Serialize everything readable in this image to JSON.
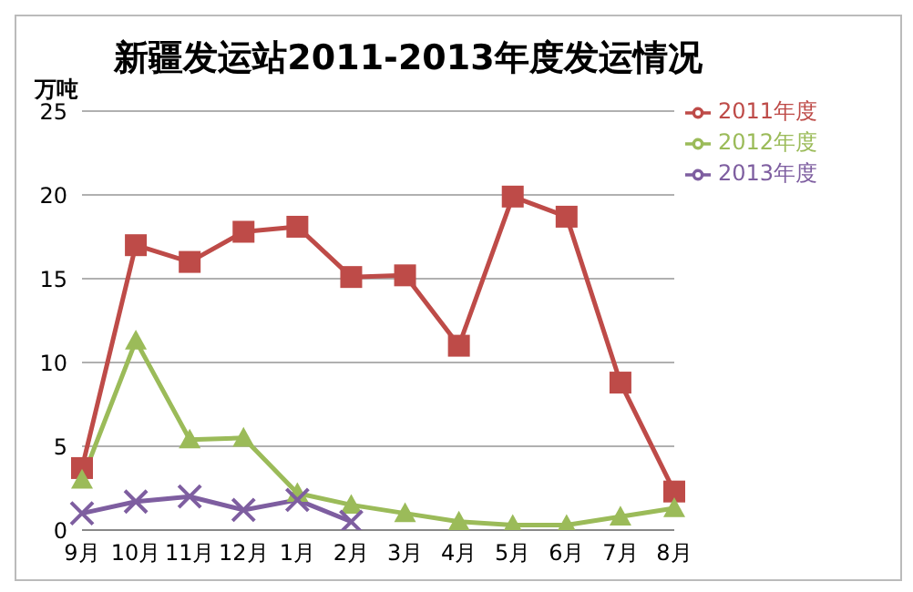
{
  "chart_data": {
    "type": "line",
    "title": "新疆发运站2011-2013年度发运情况",
    "ylabel": "万吨",
    "categories": [
      "9月",
      "10月",
      "11月",
      "12月",
      "1月",
      "2月",
      "3月",
      "4月",
      "5月",
      "6月",
      "7月",
      "8月"
    ],
    "series": [
      {
        "name": "2011年度",
        "color": "#be4b48",
        "marker": "square",
        "values": [
          3.7,
          17,
          16,
          17.8,
          18.1,
          15.1,
          15.2,
          11,
          19.9,
          18.7,
          8.8,
          2.3
        ]
      },
      {
        "name": "2012年度",
        "color": "#9bbb59",
        "marker": "triangle",
        "values": [
          3,
          11.3,
          5.4,
          5.5,
          2.2,
          1.5,
          1,
          0.5,
          0.3,
          0.3,
          0.8,
          1.3
        ]
      },
      {
        "name": "2013年度",
        "color": "#7e5ea0",
        "marker": "cross",
        "values": [
          1,
          1.7,
          2,
          1.2,
          1.8,
          0.5,
          null,
          null,
          null,
          null,
          null,
          null
        ]
      }
    ],
    "ylim": [
      0,
      25
    ],
    "yticks": [
      0,
      5,
      10,
      15,
      20,
      25
    ],
    "grid": "y",
    "legend": "top right"
  }
}
